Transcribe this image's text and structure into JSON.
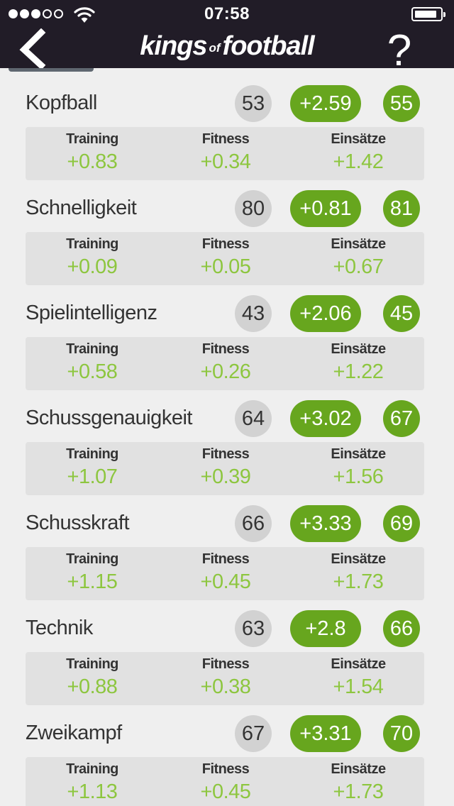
{
  "status_bar": {
    "time": "07:58"
  },
  "header": {
    "logo": {
      "part1": "kings",
      "part2": "of",
      "part3": "football"
    },
    "help_label": "?"
  },
  "breakdown_labels": {
    "training": "Training",
    "fitness": "Fitness",
    "matches": "Einsätze"
  },
  "skills": [
    {
      "name": "Kopfball",
      "base": "53",
      "delta": "+2.59",
      "new": "55",
      "training": "+0.83",
      "fitness": "+0.34",
      "matches": "+1.42"
    },
    {
      "name": "Schnelligkeit",
      "base": "80",
      "delta": "+0.81",
      "new": "81",
      "training": "+0.09",
      "fitness": "+0.05",
      "matches": "+0.67"
    },
    {
      "name": "Spielintelligenz",
      "base": "43",
      "delta": "+2.06",
      "new": "45",
      "training": "+0.58",
      "fitness": "+0.26",
      "matches": "+1.22"
    },
    {
      "name": "Schussgenauigkeit",
      "base": "64",
      "delta": "+3.02",
      "new": "67",
      "training": "+1.07",
      "fitness": "+0.39",
      "matches": "+1.56"
    },
    {
      "name": "Schusskraft",
      "base": "66",
      "delta": "+3.33",
      "new": "69",
      "training": "+1.15",
      "fitness": "+0.45",
      "matches": "+1.73"
    },
    {
      "name": "Technik",
      "base": "63",
      "delta": "+2.8",
      "new": "66",
      "training": "+0.88",
      "fitness": "+0.38",
      "matches": "+1.54"
    },
    {
      "name": "Zweikampf",
      "base": "67",
      "delta": "+3.31",
      "new": "70",
      "training": "+1.13",
      "fitness": "+0.45",
      "matches": "+1.73"
    }
  ],
  "colors": {
    "bar_bg": "#211c27",
    "accent_green": "#67a61e",
    "value_green": "#8dc63f",
    "base_badge": "#d2d2d2"
  }
}
